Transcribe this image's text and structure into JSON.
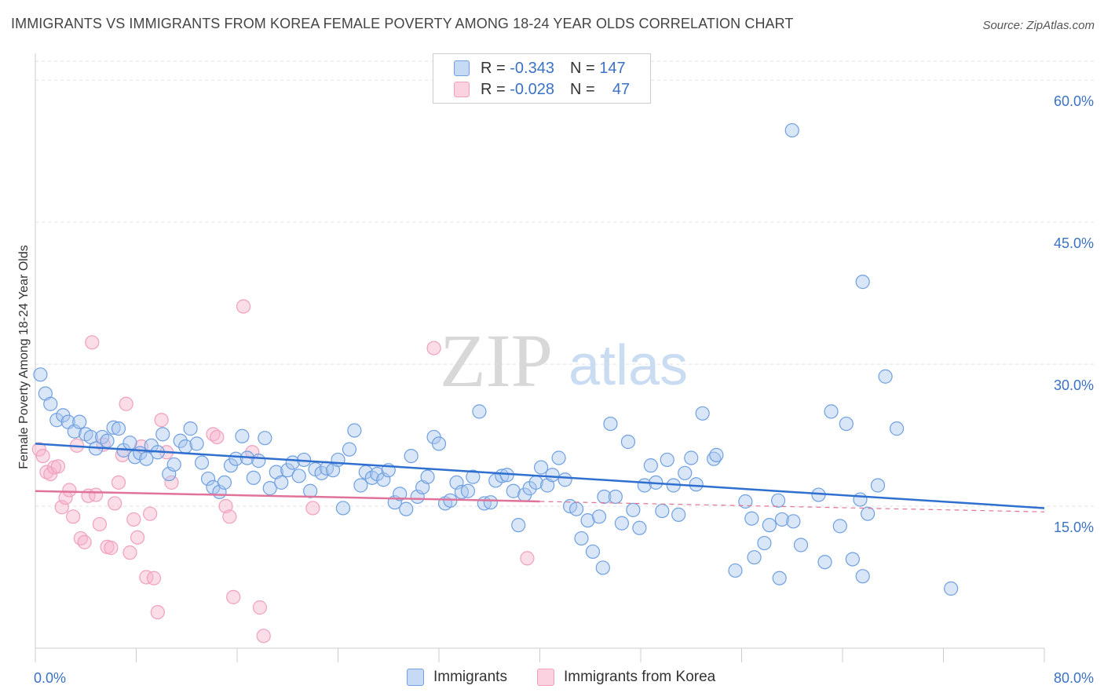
{
  "title": "IMMIGRANTS VS IMMIGRANTS FROM KOREA FEMALE POVERTY AMONG 18-24 YEAR OLDS CORRELATION CHART",
  "source": "Source: ZipAtlas.com",
  "watermark": {
    "zip": "ZIP",
    "atlas": "atlas"
  },
  "legend": {
    "r_label": "R =",
    "n_label": "N =",
    "rows": [
      {
        "r": "-0.343",
        "n": "147"
      },
      {
        "r": "-0.028",
        "n": "47"
      }
    ]
  },
  "chart_data": {
    "type": "scatter",
    "title": "IMMIGRANTS VS IMMIGRANTS FROM KOREA FEMALE POVERTY AMONG 18-24 YEAR OLDS CORRELATION CHART",
    "xlabel": "",
    "ylabel": "Female Poverty Among 18-24 Year Olds",
    "xlim": [
      0,
      80
    ],
    "ylim": [
      0,
      62
    ],
    "x_tick_labels": [
      "0.0%",
      "80.0%"
    ],
    "y_ticks": [
      15,
      30,
      45,
      60
    ],
    "y_tick_labels": [
      "15.0%",
      "30.0%",
      "45.0%",
      "60.0%"
    ],
    "colors": {
      "immigrants": "#6fa0e0",
      "korea": "#f0a0bd",
      "immigrants_line": "#2e6fd0",
      "korea_line": "#e0739a"
    },
    "series": [
      {
        "name": "Immigrants",
        "trend": {
          "x": [
            0,
            80
          ],
          "y": [
            21.6,
            14.8
          ]
        },
        "points": [
          [
            0.4,
            28.9
          ],
          [
            0.8,
            26.9
          ],
          [
            1.2,
            25.8
          ],
          [
            1.7,
            24.1
          ],
          [
            2.2,
            24.6
          ],
          [
            2.6,
            23.9
          ],
          [
            3.1,
            22.9
          ],
          [
            3.5,
            23.9
          ],
          [
            4.0,
            22.6
          ],
          [
            4.4,
            22.3
          ],
          [
            4.8,
            21.1
          ],
          [
            5.3,
            22.3
          ],
          [
            5.7,
            21.9
          ],
          [
            6.2,
            23.3
          ],
          [
            6.6,
            23.2
          ],
          [
            7.0,
            20.9
          ],
          [
            7.5,
            21.7
          ],
          [
            7.9,
            20.2
          ],
          [
            8.3,
            20.6
          ],
          [
            8.8,
            20.0
          ],
          [
            9.2,
            21.4
          ],
          [
            9.7,
            20.7
          ],
          [
            10.1,
            22.6
          ],
          [
            10.6,
            18.4
          ],
          [
            11.0,
            19.4
          ],
          [
            11.5,
            21.9
          ],
          [
            11.9,
            21.3
          ],
          [
            12.3,
            23.2
          ],
          [
            12.8,
            21.6
          ],
          [
            13.2,
            19.6
          ],
          [
            13.7,
            17.9
          ],
          [
            14.1,
            17.0
          ],
          [
            14.6,
            16.5
          ],
          [
            15.0,
            17.5
          ],
          [
            15.5,
            19.3
          ],
          [
            15.9,
            20.0
          ],
          [
            16.4,
            22.4
          ],
          [
            16.8,
            20.1
          ],
          [
            17.3,
            18.0
          ],
          [
            17.7,
            19.8
          ],
          [
            18.2,
            22.2
          ],
          [
            18.6,
            16.9
          ],
          [
            19.1,
            18.6
          ],
          [
            19.5,
            17.5
          ],
          [
            20.0,
            18.8
          ],
          [
            20.4,
            19.6
          ],
          [
            20.9,
            18.2
          ],
          [
            21.3,
            19.9
          ],
          [
            21.8,
            16.6
          ],
          [
            22.2,
            18.9
          ],
          [
            22.7,
            18.5
          ],
          [
            23.1,
            19.0
          ],
          [
            23.6,
            18.8
          ],
          [
            24.0,
            19.9
          ],
          [
            24.4,
            14.8
          ],
          [
            24.9,
            21.0
          ],
          [
            25.3,
            23.0
          ],
          [
            25.8,
            17.2
          ],
          [
            26.2,
            18.6
          ],
          [
            26.7,
            18.0
          ],
          [
            27.1,
            18.4
          ],
          [
            27.6,
            17.8
          ],
          [
            28.0,
            18.8
          ],
          [
            28.5,
            15.4
          ],
          [
            28.9,
            16.3
          ],
          [
            29.4,
            14.7
          ],
          [
            29.8,
            20.3
          ],
          [
            30.3,
            16.0
          ],
          [
            30.7,
            17.0
          ],
          [
            31.1,
            18.1
          ],
          [
            31.6,
            22.3
          ],
          [
            32.0,
            21.6
          ],
          [
            32.5,
            15.3
          ],
          [
            32.9,
            15.6
          ],
          [
            33.4,
            17.5
          ],
          [
            33.8,
            16.5
          ],
          [
            34.3,
            16.6
          ],
          [
            34.7,
            18.1
          ],
          [
            35.2,
            25.0
          ],
          [
            35.6,
            15.3
          ],
          [
            36.1,
            15.4
          ],
          [
            36.5,
            17.7
          ],
          [
            37.0,
            18.2
          ],
          [
            37.4,
            18.3
          ],
          [
            37.9,
            16.6
          ],
          [
            38.3,
            13.0
          ],
          [
            38.8,
            16.2
          ],
          [
            39.2,
            16.9
          ],
          [
            39.7,
            17.5
          ],
          [
            40.1,
            19.1
          ],
          [
            40.6,
            17.2
          ],
          [
            41.0,
            18.3
          ],
          [
            41.5,
            20.1
          ],
          [
            42.0,
            17.8
          ],
          [
            42.4,
            15.0
          ],
          [
            42.9,
            14.7
          ],
          [
            43.3,
            11.6
          ],
          [
            43.8,
            13.5
          ],
          [
            44.2,
            10.2
          ],
          [
            44.7,
            13.9
          ],
          [
            45.1,
            16.0
          ],
          [
            45.6,
            23.7
          ],
          [
            46.0,
            16.0
          ],
          [
            46.5,
            13.2
          ],
          [
            47.0,
            21.8
          ],
          [
            47.4,
            14.6
          ],
          [
            47.9,
            12.7
          ],
          [
            48.3,
            17.2
          ],
          [
            48.8,
            19.3
          ],
          [
            49.2,
            17.5
          ],
          [
            49.7,
            14.5
          ],
          [
            50.1,
            19.9
          ],
          [
            50.6,
            17.2
          ],
          [
            51.0,
            14.1
          ],
          [
            51.5,
            18.5
          ],
          [
            52.0,
            20.1
          ],
          [
            52.4,
            17.3
          ],
          [
            52.9,
            24.8
          ],
          [
            53.8,
            20.0
          ],
          [
            54.0,
            20.4
          ],
          [
            56.3,
            15.5
          ],
          [
            56.8,
            13.7
          ],
          [
            57.0,
            9.6
          ],
          [
            57.8,
            11.1
          ],
          [
            58.2,
            13.0
          ],
          [
            58.9,
            15.6
          ],
          [
            59.2,
            13.6
          ],
          [
            60.1,
            13.4
          ],
          [
            60.7,
            10.9
          ],
          [
            62.1,
            16.2
          ],
          [
            62.6,
            9.1
          ],
          [
            63.1,
            25.0
          ],
          [
            63.8,
            12.9
          ],
          [
            64.3,
            23.7
          ],
          [
            64.8,
            9.4
          ],
          [
            65.4,
            15.7
          ],
          [
            65.6,
            7.6
          ],
          [
            66.0,
            14.2
          ],
          [
            66.8,
            17.2
          ],
          [
            60.0,
            54.7
          ],
          [
            65.6,
            38.7
          ],
          [
            67.4,
            28.7
          ],
          [
            68.3,
            23.2
          ],
          [
            72.6,
            6.3
          ],
          [
            55.5,
            8.2
          ],
          [
            59.0,
            7.4
          ],
          [
            45.0,
            8.5
          ]
        ]
      },
      {
        "name": "Immigrants from Korea",
        "trend": {
          "x": [
            0,
            40
          ],
          "y": [
            16.6,
            15.5
          ]
        },
        "trend_ext": {
          "x": [
            40,
            80
          ],
          "y": [
            15.5,
            14.4
          ]
        },
        "points": [
          [
            0.3,
            21.0
          ],
          [
            0.6,
            20.3
          ],
          [
            0.9,
            18.6
          ],
          [
            1.2,
            18.4
          ],
          [
            1.5,
            19.1
          ],
          [
            1.8,
            19.2
          ],
          [
            2.1,
            14.9
          ],
          [
            2.4,
            15.9
          ],
          [
            2.7,
            16.7
          ],
          [
            3.0,
            13.9
          ],
          [
            3.3,
            21.4
          ],
          [
            3.6,
            11.6
          ],
          [
            3.9,
            11.2
          ],
          [
            4.2,
            16.1
          ],
          [
            4.5,
            32.3
          ],
          [
            4.8,
            16.2
          ],
          [
            5.1,
            13.1
          ],
          [
            5.4,
            21.5
          ],
          [
            5.7,
            10.7
          ],
          [
            6.0,
            10.6
          ],
          [
            6.3,
            15.3
          ],
          [
            6.6,
            17.5
          ],
          [
            6.9,
            20.4
          ],
          [
            7.2,
            25.8
          ],
          [
            7.5,
            10.1
          ],
          [
            7.8,
            13.6
          ],
          [
            8.1,
            11.7
          ],
          [
            8.4,
            21.3
          ],
          [
            8.8,
            7.5
          ],
          [
            9.1,
            14.2
          ],
          [
            9.4,
            7.4
          ],
          [
            9.7,
            3.8
          ],
          [
            10.0,
            24.1
          ],
          [
            10.4,
            20.7
          ],
          [
            10.8,
            17.5
          ],
          [
            14.1,
            22.6
          ],
          [
            14.4,
            22.3
          ],
          [
            15.1,
            15.0
          ],
          [
            15.4,
            13.9
          ],
          [
            15.7,
            5.4
          ],
          [
            16.5,
            36.1
          ],
          [
            17.2,
            20.7
          ],
          [
            17.8,
            4.3
          ],
          [
            18.1,
            1.3
          ],
          [
            31.6,
            31.7
          ],
          [
            39.0,
            9.5
          ],
          [
            22.0,
            14.8
          ]
        ]
      }
    ]
  },
  "bottom_legend": [
    "Immigrants",
    "Immigrants from Korea"
  ]
}
